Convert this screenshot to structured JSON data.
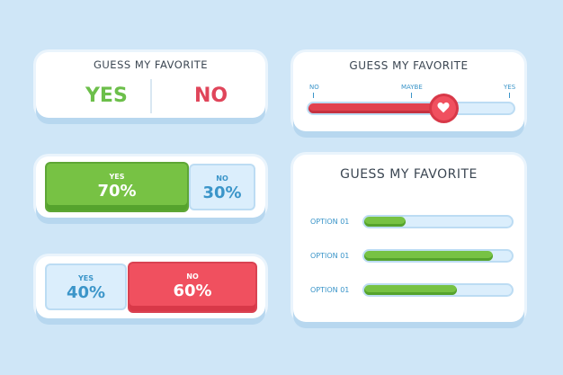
{
  "card_yes_no": {
    "title": "GUESS MY FAVORITE",
    "yes_label": "YES",
    "no_label": "NO"
  },
  "card_result_a": {
    "yes_label": "YES",
    "yes_percent_text": "70%",
    "yes_value": 70,
    "no_label": "NO",
    "no_percent_text": "30%",
    "no_value": 30
  },
  "card_result_b": {
    "yes_label": "YES",
    "yes_percent_text": "40%",
    "yes_value": 40,
    "no_label": "NO",
    "no_percent_text": "60%",
    "no_value": 60
  },
  "card_slider": {
    "title": "GUESS MY FAVORITE",
    "label_left": "NO",
    "label_middle": "MAYBE",
    "label_right": "YES",
    "knob_icon": "heart-icon",
    "value": 0.66
  },
  "card_options": {
    "title": "GUESS MY FAVORITE",
    "options": [
      {
        "label": "OPTION 01",
        "value": 0.28
      },
      {
        "label": "OPTION 01",
        "value": 0.87
      },
      {
        "label": "OPTION 01",
        "value": 0.63
      }
    ]
  },
  "colors": {
    "background": "#cfe6f7",
    "yes_green": "#77c244",
    "no_red": "#f0505f",
    "light_blue": "#dbeefc",
    "text_blue": "#3b95c9"
  }
}
